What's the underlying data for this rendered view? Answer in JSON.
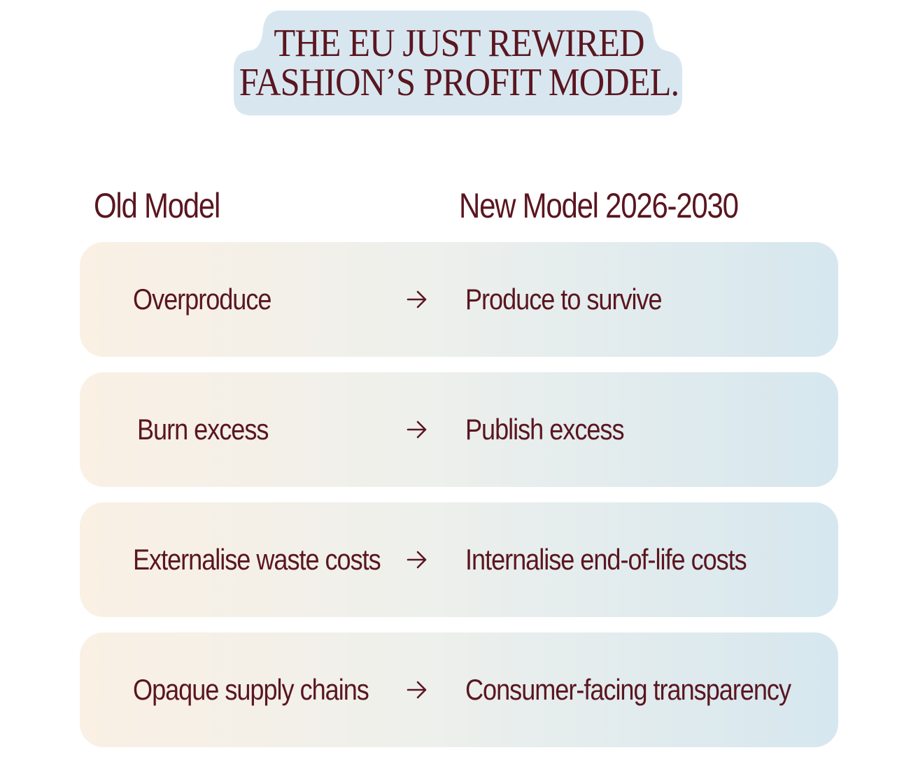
{
  "title": {
    "line1": "THE EU JUST REWIRED",
    "line2": "FASHION’S PROFIT MODEL."
  },
  "columns": {
    "old": "Old Model",
    "new": "New Model 2026-2030"
  },
  "rows": [
    {
      "old": "Overproduce",
      "new": "Produce to survive"
    },
    {
      "old": "Burn excess",
      "new": "Publish excess"
    },
    {
      "old": "Externalise waste costs",
      "new": "Internalise end-of-life costs"
    },
    {
      "old": "Opaque supply chains",
      "new": "Consumer-facing transparency"
    }
  ],
  "arrow_icon": "right-arrow-icon",
  "colors": {
    "text": "#5a1620",
    "title_bg": "#d8e7ef",
    "row_left": "#faf0e4",
    "row_right": "#d6e7ef"
  }
}
